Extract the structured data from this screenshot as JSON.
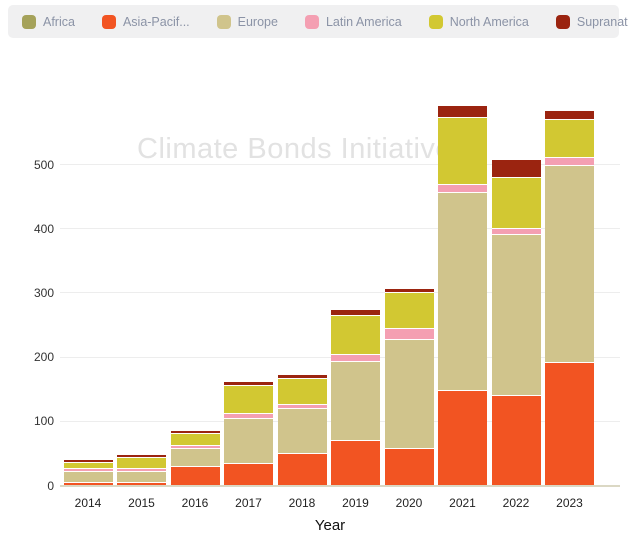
{
  "watermark": "Climate Bonds Initiative",
  "legend": {
    "background": "#f0f0f1",
    "text_color": "#8b93a6",
    "position": "top"
  },
  "chart_data": {
    "type": "bar",
    "stacked": true,
    "stack_order": "bottom-to-top as listed in series",
    "watermark": "Climate Bonds Initiative",
    "categories": [
      "2014",
      "2015",
      "2016",
      "2017",
      "2018",
      "2019",
      "2020",
      "2021",
      "2022",
      "2023"
    ],
    "series": [
      {
        "name": "Africa",
        "legend_label": "Africa",
        "color": "#a5a25a",
        "values": [
          0,
          0,
          0,
          0,
          0,
          0,
          0,
          0,
          0,
          0
        ]
      },
      {
        "name": "Asia-Pacific",
        "legend_label": "Asia-Pacif...",
        "color": "#f25422",
        "values": [
          6,
          6,
          30,
          35,
          50,
          71,
          58,
          149,
          141,
          193
        ]
      },
      {
        "name": "Europe",
        "legend_label": "Europe",
        "color": "#d0c48c",
        "values": [
          17,
          17,
          29,
          70,
          70,
          123,
          170,
          308,
          250,
          306
        ]
      },
      {
        "name": "Latin America",
        "legend_label": "Latin America",
        "color": "#f49fb2",
        "values": [
          4,
          5,
          4,
          8,
          7,
          11,
          17,
          12,
          10,
          12
        ]
      },
      {
        "name": "North America",
        "legend_label": "North America",
        "color": "#d2c832",
        "values": [
          10,
          17,
          19,
          44,
          41,
          61,
          57,
          105,
          80,
          60
        ]
      },
      {
        "name": "Supranational",
        "legend_label": "Supranational",
        "color": "#9b2410",
        "values": [
          5,
          4,
          4,
          6,
          6,
          9,
          5,
          18,
          27,
          14
        ]
      }
    ],
    "totals": [
      42,
      49,
      86,
      163,
      174,
      275,
      307,
      592,
      508,
      585
    ],
    "xlabel": "Year",
    "ylabel": "",
    "yticks": [
      0,
      100,
      200,
      300,
      400,
      500
    ],
    "ylim": [
      0,
      600
    ],
    "grid": "horizontal",
    "legend_position": "top",
    "colors": {
      "gridline": "#ededed",
      "x_axis_line": "#dbd8c4",
      "tick_label": "#333333",
      "watermark": "#e2e2e2"
    }
  }
}
